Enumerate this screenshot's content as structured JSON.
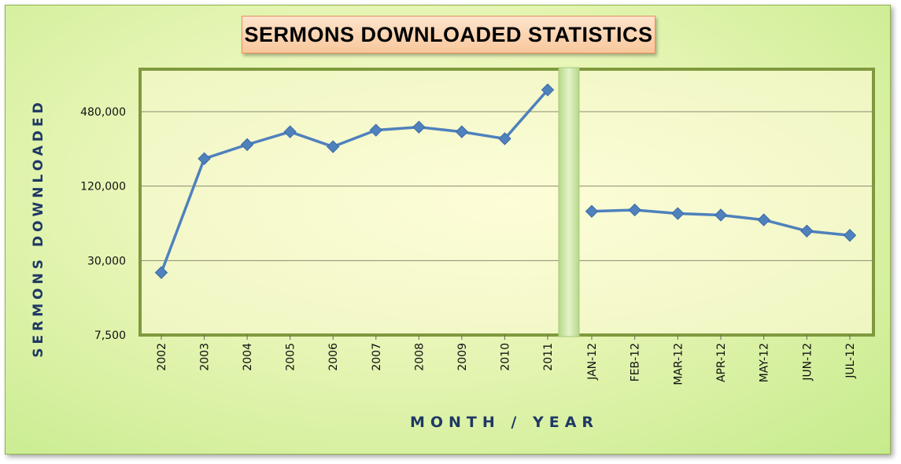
{
  "chart_data": {
    "type": "line",
    "title": "SERMONS DOWNLOADED STATISTICS",
    "xlabel": "MONTH / YEAR",
    "ylabel": "SERMONS DOWNLOADED",
    "yscale": "log",
    "ylim": [
      7500,
      900000
    ],
    "yticks": [
      7500,
      30000,
      120000,
      480000
    ],
    "ytick_labels": [
      "7,500",
      "30,000",
      "120,000",
      "480,000"
    ],
    "grid": true,
    "legend": "none",
    "panels": [
      {
        "name": "yearly",
        "categories": [
          "2002",
          "2003",
          "2004",
          "2005",
          "2006",
          "2007",
          "2008",
          "2009",
          "2010",
          "2011"
        ],
        "values": [
          24000,
          200000,
          260000,
          330000,
          250000,
          340000,
          360000,
          330000,
          290000,
          720000
        ]
      },
      {
        "name": "monthly",
        "categories": [
          "JAN-12",
          "FEB-12",
          "MAR-12",
          "APR-12",
          "MAY-12",
          "JUN-12",
          "JUL-12"
        ],
        "values": [
          75000,
          77000,
          72000,
          70000,
          64000,
          52000,
          48000
        ]
      }
    ],
    "colors": {
      "line": "#4f81bd",
      "marker": "#4f81bd",
      "plot_bg": "#fdfdd8",
      "plot_border": "#7f9a3e",
      "separator": "#c8e2a0",
      "title_text": "#1f3864"
    }
  }
}
